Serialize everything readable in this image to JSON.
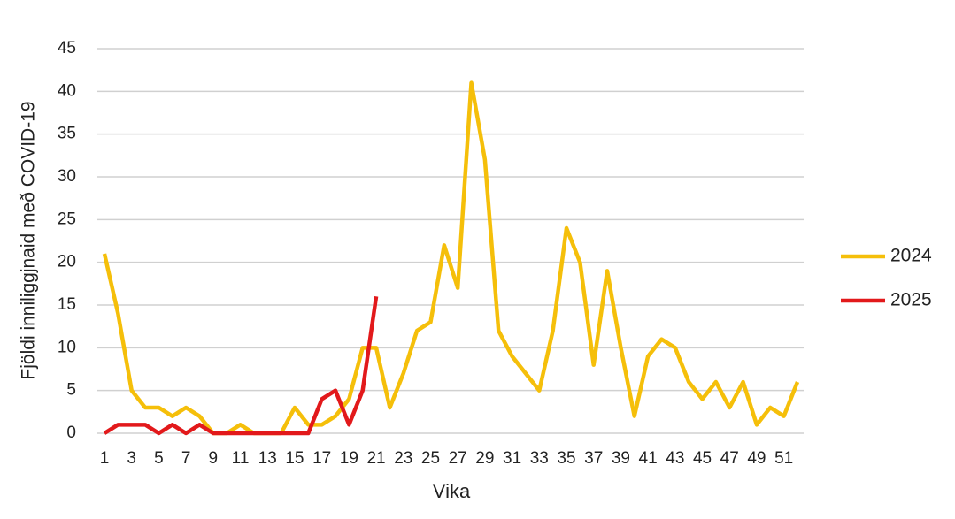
{
  "chart_data": {
    "type": "line",
    "x_label": "Vika",
    "y_label": "Fjöldi inniliggjnaid með COVID-19",
    "x": [
      1,
      2,
      3,
      4,
      5,
      6,
      7,
      8,
      9,
      10,
      11,
      12,
      13,
      14,
      15,
      16,
      17,
      18,
      19,
      20,
      21,
      22,
      23,
      24,
      25,
      26,
      27,
      28,
      29,
      30,
      31,
      32,
      33,
      34,
      35,
      36,
      37,
      38,
      39,
      40,
      41,
      42,
      43,
      44,
      45,
      46,
      47,
      48,
      49,
      50,
      51,
      52
    ],
    "xlim": [
      1,
      52
    ],
    "xticks": [
      1,
      3,
      5,
      7,
      9,
      11,
      13,
      15,
      17,
      19,
      21,
      23,
      25,
      27,
      29,
      31,
      33,
      35,
      37,
      39,
      41,
      43,
      45,
      47,
      49,
      51
    ],
    "ylim": [
      0,
      45
    ],
    "yticks": [
      0,
      5,
      10,
      15,
      20,
      25,
      30,
      35,
      40,
      45
    ],
    "grid": true,
    "legend": "right",
    "series": [
      {
        "name": "2024",
        "color": "#f5bf0a",
        "values": [
          21,
          14,
          5,
          3,
          3,
          2,
          3,
          2,
          0,
          0,
          1,
          0,
          0,
          0,
          3,
          1,
          1,
          2,
          4,
          10,
          10,
          3,
          7,
          12,
          13,
          22,
          17,
          41,
          32,
          12,
          9,
          7,
          5,
          12,
          24,
          20,
          8,
          19,
          10,
          2,
          9,
          11,
          10,
          6,
          4,
          6,
          3,
          6,
          1,
          3,
          2,
          6
        ]
      },
      {
        "name": "2025",
        "color": "#e2191b",
        "values": [
          0,
          1,
          1,
          1,
          0,
          1,
          0,
          1,
          0,
          0,
          0,
          0,
          0,
          0,
          0,
          0,
          4,
          5,
          1,
          5,
          16,
          null,
          null,
          null,
          null,
          null,
          null,
          null,
          null,
          null,
          null,
          null,
          null,
          null,
          null,
          null,
          null,
          null,
          null,
          null,
          null,
          null,
          null,
          null,
          null,
          null,
          null,
          null,
          null,
          null,
          null,
          null
        ]
      }
    ]
  }
}
